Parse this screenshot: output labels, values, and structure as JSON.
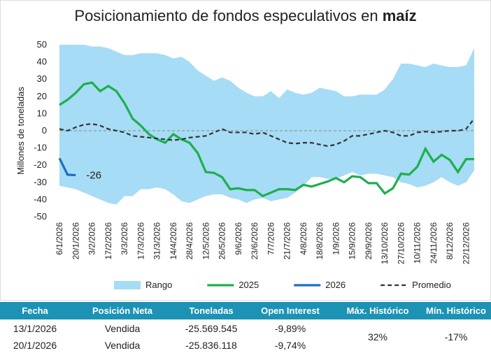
{
  "chart_data": {
    "type": "line",
    "title": "Posicionamiento de fondos especulativos en",
    "title_emphasis": "maíz",
    "y_label": "Millones de toneladas",
    "categories": [
      "6/1/2026",
      null,
      "20/1/2026",
      null,
      "3/2/2026",
      null,
      "17/2/2026",
      null,
      "3/3/2026",
      null,
      "17/3/2026",
      null,
      "31/3/2026",
      null,
      "14/4/2026",
      null,
      "28/4/2026",
      null,
      "12/5/2026",
      null,
      "26/5/2026",
      null,
      "9/6/2026",
      null,
      "23/6/2026",
      null,
      "7/7/2026",
      null,
      "21/7/2026",
      null,
      "4/8/2026",
      null,
      "18/8/2026",
      null,
      "1/9/2026",
      null,
      "15/9/2026",
      null,
      "29/9/2026",
      null,
      "13/10/2026",
      null,
      "27/10/2026",
      null,
      "10/11/2026",
      null,
      "24/11/2026",
      null,
      "8/12/2026",
      null,
      "22/12/2026",
      null
    ],
    "ylim": [
      -50,
      50
    ],
    "yticks": [
      -50,
      -40,
      -30,
      -20,
      -10,
      0,
      10,
      20,
      30,
      40,
      50
    ],
    "grid": false,
    "series": [
      {
        "name": "Rango",
        "color": "#a6dcf5",
        "kind": "range",
        "upper": [
          50,
          50,
          50,
          50,
          49,
          49,
          48,
          46,
          44,
          44,
          45,
          45,
          45,
          44,
          42,
          43,
          40,
          35,
          32,
          29,
          31,
          29,
          25,
          22,
          20,
          20,
          23,
          19,
          24,
          22,
          21,
          22,
          25,
          24,
          23,
          20,
          20,
          21,
          21,
          21,
          24,
          30,
          39,
          39,
          38,
          37,
          39,
          38,
          37,
          37,
          38,
          48
        ],
        "lower": [
          -32,
          -33,
          -34,
          -36,
          -38,
          -40,
          -42,
          -43,
          -38,
          -38,
          -34,
          -34,
          -33,
          -34,
          -37,
          -41,
          -42,
          -40,
          -38,
          -37,
          -37,
          -39,
          -40,
          -42,
          -40,
          -39,
          -41,
          -40,
          -39,
          -36,
          -32,
          -27,
          -27,
          -28,
          -28,
          -26,
          -24,
          -26,
          -25,
          -25,
          -26,
          -27,
          -30,
          -31,
          -33,
          -32,
          -30,
          -27,
          -30,
          -32,
          -30,
          -23
        ]
      },
      {
        "name": "2025",
        "color": "#1eae4e",
        "kind": "line",
        "values": [
          15,
          18,
          22,
          27,
          28,
          23,
          26,
          23,
          16,
          7,
          3,
          -2,
          -5,
          -7,
          -2,
          -5,
          -7,
          -13,
          -24,
          -24.5,
          -27,
          -34,
          -33.5,
          -34.5,
          -34.5,
          -38,
          -36,
          -34,
          -34,
          -34.5,
          -31.5,
          -32.5,
          -31,
          -29.5,
          -27.5,
          -30,
          -26.5,
          -27,
          -30.5,
          -30.5,
          -36.5,
          -33.5,
          -25,
          -25.5,
          -21,
          -10.5,
          -18,
          -14,
          -17,
          -24,
          -16.5,
          -16.5
        ]
      },
      {
        "name": "2026",
        "color": "#1f6fbf",
        "kind": "line",
        "values": [
          -16,
          -25.569545,
          -25.836118,
          null,
          null,
          null,
          null,
          null,
          null,
          null,
          null,
          null,
          null,
          null,
          null,
          null,
          null,
          null,
          null,
          null,
          null,
          null,
          null,
          null,
          null,
          null,
          null,
          null,
          null,
          null,
          null,
          null,
          null,
          null,
          null,
          null,
          null,
          null,
          null,
          null,
          null,
          null,
          null,
          null,
          null,
          null,
          null,
          null,
          null,
          null,
          null,
          null
        ],
        "value_labels": [
          null,
          null,
          "-26",
          null,
          null,
          null,
          null,
          null,
          null,
          null,
          null,
          null,
          null,
          null,
          null,
          null,
          null,
          null,
          null,
          null,
          null,
          null,
          null,
          null,
          null,
          null,
          null,
          null,
          null,
          null,
          null,
          null,
          null,
          null,
          null,
          null,
          null,
          null,
          null,
          null,
          null,
          null,
          null,
          null,
          null,
          null,
          null,
          null,
          null,
          null,
          null,
          null
        ]
      },
      {
        "name": "Promedio",
        "color": "#333333",
        "kind": "line",
        "dash": true,
        "values": [
          1,
          0,
          2,
          3.5,
          4,
          3,
          1,
          0,
          -1,
          -3,
          -3.5,
          -4,
          -4.5,
          -5,
          -5.5,
          -5,
          -4,
          -3.5,
          -3,
          -1,
          1,
          -1,
          -1,
          -1,
          -2,
          -1,
          -3,
          -5,
          -7,
          -7.5,
          -7,
          -7,
          -8,
          -9,
          -8,
          -6,
          -3,
          -3,
          -2,
          -1,
          0,
          -1,
          -3,
          -3,
          -1,
          -0.5,
          -1,
          -0.5,
          0,
          0,
          1,
          7
        ]
      }
    ]
  },
  "table": {
    "headers": [
      "Fecha",
      "Posición Neta",
      "Toneladas",
      "Open Interest",
      "Máx. Histórico",
      "Mín. Histórico"
    ],
    "rows": [
      [
        "13/1/2026",
        "Vendida",
        "-25.569.545",
        "-9,89%"
      ],
      [
        "20/1/2026",
        "Vendida",
        "-25.836.118",
        "-9,74%"
      ]
    ],
    "max_hist": "32%",
    "min_hist": "-17%"
  }
}
